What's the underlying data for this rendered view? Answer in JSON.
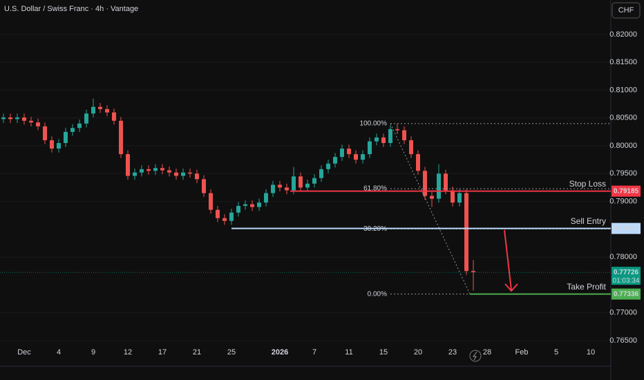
{
  "chart_data": {
    "type": "candlestick",
    "title": "U.S. Dollar / Swiss Franc · 4h · Vantage",
    "currency": "CHF",
    "categories": [
      null,
      null,
      null,
      "Dec",
      null,
      null,
      null,
      null,
      "4",
      null,
      null,
      null,
      null,
      "9",
      null,
      null,
      null,
      null,
      "12",
      null,
      null,
      null,
      null,
      "17",
      null,
      null,
      null,
      null,
      "21",
      null,
      null,
      null,
      null,
      "25",
      null,
      null,
      null,
      null,
      null,
      null,
      "2026",
      null,
      null,
      null,
      null,
      "7",
      null,
      null,
      null,
      null,
      "11",
      null,
      null,
      null,
      null,
      "15",
      null,
      null,
      null,
      null,
      "20",
      null,
      null,
      null,
      null,
      "23",
      null,
      null,
      null,
      null,
      "28",
      null,
      null,
      null,
      null,
      "Feb",
      null,
      null,
      null,
      null,
      "5",
      null,
      null,
      null,
      null,
      "10",
      null,
      null
    ],
    "open": [
      0.8048,
      0.8051,
      0.8048,
      0.8051,
      0.8045,
      0.8042,
      0.8035,
      0.801,
      0.7995,
      0.8005,
      0.8025,
      0.8032,
      0.804,
      0.8058,
      0.807,
      0.8066,
      0.806,
      0.8045,
      0.7985,
      0.7946,
      0.7952,
      0.7958,
      0.7955,
      0.796,
      0.7956,
      0.7952,
      0.7946,
      0.7952,
      0.795,
      0.794,
      0.7915,
      0.7885,
      0.787,
      0.7865,
      0.788,
      0.7892,
      0.7895,
      0.789,
      0.7898,
      0.7915,
      0.793,
      0.7925,
      0.792,
      0.7945,
      0.7925,
      0.7932,
      0.7942,
      0.7958,
      0.7968,
      0.798,
      0.7995,
      0.7985,
      0.7975,
      0.7985,
      0.8008,
      0.8015,
      0.8005,
      0.803,
      0.8028,
      0.801,
      0.7985,
      0.7955,
      0.791,
      0.7905,
      0.795,
      0.792,
      0.7898,
      0.7915,
      0.7775,
      null,
      null,
      null,
      null,
      null,
      null,
      null,
      null,
      null,
      null,
      null,
      null,
      null,
      null,
      null,
      null,
      null,
      null,
      null
    ],
    "high": [
      0.8058,
      0.8058,
      0.8058,
      0.8058,
      0.8052,
      0.8049,
      0.8042,
      0.8017,
      0.8012,
      0.8032,
      0.8039,
      0.8047,
      0.8065,
      0.8085,
      0.8077,
      0.8073,
      0.8067,
      0.8052,
      0.7992,
      0.7959,
      0.7965,
      0.7965,
      0.7967,
      0.7967,
      0.7963,
      0.7959,
      0.7959,
      0.7959,
      0.7957,
      0.7947,
      0.7922,
      0.7892,
      0.7877,
      0.7887,
      0.7899,
      0.7902,
      0.7902,
      0.7905,
      0.7922,
      0.7937,
      0.7937,
      0.7932,
      0.7962,
      0.7952,
      0.7939,
      0.7949,
      0.7965,
      0.7975,
      0.7987,
      0.8002,
      0.8002,
      0.7992,
      0.7992,
      0.8015,
      0.8022,
      0.8022,
      0.8037,
      0.804,
      0.8035,
      0.8017,
      0.7992,
      0.7962,
      0.7917,
      0.7967,
      0.7957,
      0.7927,
      0.7922,
      0.7922,
      0.7795,
      null,
      null,
      null,
      null,
      null,
      null,
      null,
      null,
      null,
      null,
      null,
      null,
      null,
      null,
      null,
      null,
      null,
      null,
      null
    ],
    "low": [
      0.8041,
      0.8041,
      0.8041,
      0.8038,
      0.8035,
      0.8028,
      0.8003,
      0.7988,
      0.7988,
      0.7998,
      0.8018,
      0.8025,
      0.8033,
      0.8051,
      0.8059,
      0.8053,
      0.8038,
      0.7978,
      0.7939,
      0.7939,
      0.7945,
      0.7948,
      0.7948,
      0.7949,
      0.7945,
      0.7939,
      0.7939,
      0.7943,
      0.7933,
      0.7908,
      0.7878,
      0.7863,
      0.7858,
      0.7858,
      0.7873,
      0.7885,
      0.7883,
      0.7883,
      0.7891,
      0.7908,
      0.7918,
      0.7913,
      0.7913,
      0.7918,
      0.7918,
      0.7925,
      0.7935,
      0.7951,
      0.7961,
      0.7973,
      0.7978,
      0.7968,
      0.7968,
      0.7978,
      0.8001,
      0.7998,
      0.7998,
      0.8021,
      0.8003,
      0.7978,
      0.7948,
      0.7903,
      0.789,
      0.7898,
      0.7913,
      0.7891,
      0.7891,
      0.7768,
      0.774,
      null,
      null,
      null,
      null,
      null,
      null,
      null,
      null,
      null,
      null,
      null,
      null,
      null,
      null,
      null,
      null,
      null,
      null,
      null
    ],
    "close": [
      0.8051,
      0.8048,
      0.8051,
      0.8045,
      0.8042,
      0.8035,
      0.801,
      0.7995,
      0.8005,
      0.8025,
      0.8032,
      0.804,
      0.8058,
      0.807,
      0.8066,
      0.806,
      0.8045,
      0.7985,
      0.7946,
      0.7952,
      0.7958,
      0.7955,
      0.796,
      0.7956,
      0.7952,
      0.7946,
      0.7952,
      0.795,
      0.794,
      0.7915,
      0.7885,
      0.787,
      0.7865,
      0.788,
      0.7892,
      0.7895,
      0.789,
      0.7898,
      0.7915,
      0.793,
      0.7925,
      0.792,
      0.7945,
      0.7925,
      0.7932,
      0.7942,
      0.7958,
      0.7968,
      0.798,
      0.7995,
      0.7985,
      0.7975,
      0.7985,
      0.8008,
      0.8015,
      0.8005,
      0.803,
      0.8028,
      0.801,
      0.7985,
      0.7955,
      0.791,
      0.7905,
      0.795,
      0.792,
      0.7898,
      0.7915,
      0.7775,
      0.7773,
      null,
      null,
      null,
      null,
      null,
      null,
      null,
      null,
      null,
      null,
      null,
      null,
      null,
      null,
      null,
      null,
      null,
      null,
      null
    ],
    "up_color": "#26a69a",
    "down_color": "#ef5350",
    "ylim": [
      0.7604,
      0.8262
    ],
    "yticks": [
      {
        "value": 0.82,
        "label": "0.82000"
      },
      {
        "value": 0.815,
        "label": "0.81500"
      },
      {
        "value": 0.81,
        "label": "0.81000"
      },
      {
        "value": 0.805,
        "label": "0.80500"
      },
      {
        "value": 0.8,
        "label": "0.80000"
      },
      {
        "value": 0.795,
        "label": "0.79500"
      },
      {
        "value": 0.79,
        "label": "0.79000"
      },
      {
        "value": 0.78,
        "label": "0.78000"
      },
      {
        "value": 0.77,
        "label": "0.77000"
      },
      {
        "value": 0.765,
        "label": "0.76500"
      }
    ],
    "levels": [
      {
        "name": "Stop Loss",
        "value": 0.79185,
        "color": "#f23645"
      },
      {
        "name": "Sell Entry",
        "value": 0.78515,
        "color": "#bbd9fb"
      },
      {
        "name": "Take Profit",
        "value": 0.77336,
        "color": "#4caf50"
      }
    ],
    "fib": {
      "high": 0.804,
      "low": 0.77336,
      "levels": [
        {
          "value": 100,
          "label": "100.00%"
        },
        {
          "value": 61.8,
          "label": "61.80%"
        },
        {
          "value": 38.2,
          "label": "38.20%"
        },
        {
          "value": 0,
          "label": "0.00%"
        }
      ]
    },
    "last_price": 0.77726,
    "last_color": "#089981",
    "countdown": "01:03:34"
  }
}
